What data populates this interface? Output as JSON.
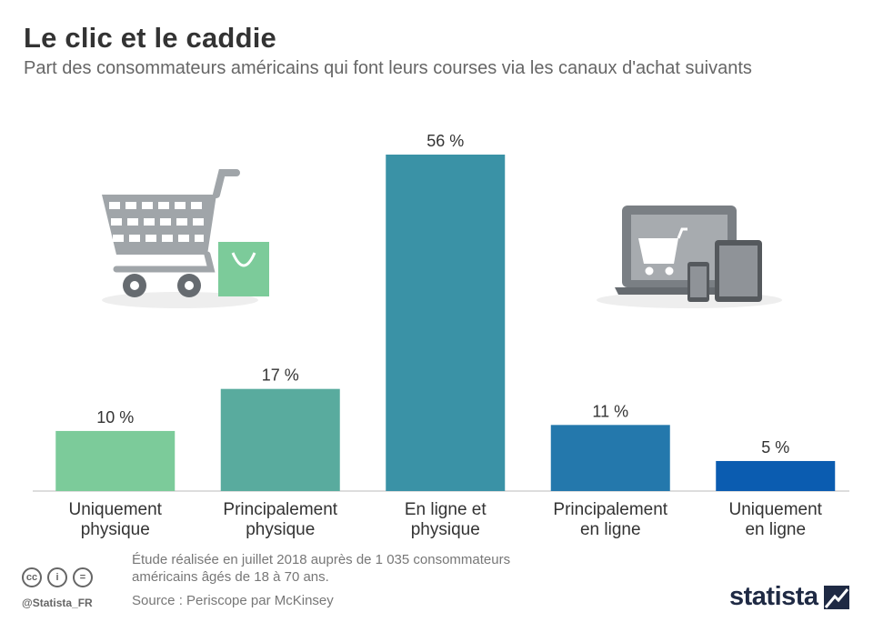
{
  "title": "Le clic et le caddie",
  "subtitle": "Part des consommateurs américains qui font leurs courses via les canaux d'achat suivants",
  "chart_data": {
    "type": "bar",
    "categories": [
      [
        "Uniquement",
        "physique"
      ],
      [
        "Principalement",
        "physique"
      ],
      [
        "En ligne et",
        "physique"
      ],
      [
        "Principalement",
        "en ligne"
      ],
      [
        "Uniquement",
        "en ligne"
      ]
    ],
    "values": [
      10,
      17,
      56,
      11,
      5
    ],
    "value_labels": [
      "10 %",
      "17 %",
      "56 %",
      "11 %",
      "5 %"
    ],
    "colors": [
      "#7ccb9a",
      "#59ab9e",
      "#3a92a6",
      "#2478ac",
      "#0b5cb0"
    ],
    "ylim": [
      0,
      56
    ],
    "grid": false,
    "legend": "none"
  },
  "footnote": "Étude réalisée en juillet 2018 auprès de 1 035 consommateurs américains âgés de 18 à 70 ans.",
  "source": "Source : Periscope par McKinsey",
  "handle": "@Statista_FR",
  "license_icons": [
    "creative-commons-icon",
    "attribution-icon",
    "no-derivatives-icon"
  ],
  "license_glyphs": [
    "cc",
    "i",
    "="
  ],
  "brand": "statista",
  "illustrations": [
    "shopping-cart-icon",
    "shopping-bag-icon",
    "laptop-icon",
    "smartphone-icon",
    "tablet-icon"
  ]
}
